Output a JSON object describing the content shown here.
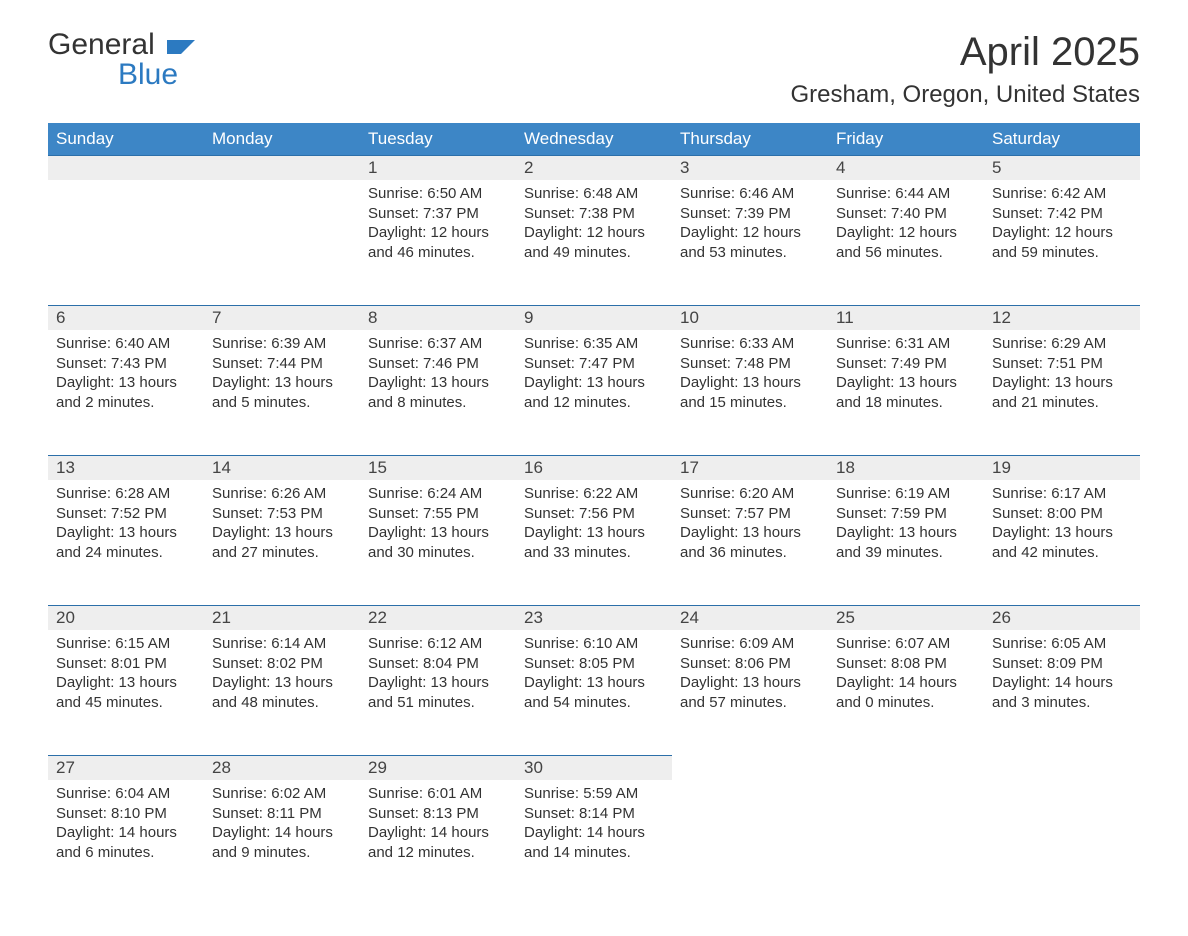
{
  "logo": {
    "word1": "General",
    "word2": "Blue"
  },
  "header": {
    "month_title": "April 2025",
    "location": "Gresham, Oregon, United States"
  },
  "colors": {
    "header_bg": "#3d86c6",
    "header_text": "#ffffff",
    "row_divider": "#2c6fa9",
    "daynum_bg": "#eeeeee",
    "body_text": "#333333",
    "logo_accent": "#2c7ac1",
    "page_bg": "#ffffff"
  },
  "weekdays": [
    "Sunday",
    "Monday",
    "Tuesday",
    "Wednesday",
    "Thursday",
    "Friday",
    "Saturday"
  ],
  "calendar": {
    "type": "table",
    "columns": 7,
    "rows": 5,
    "start_weekday_index": 2,
    "days_in_month": 30,
    "day_font_size": 17,
    "body_font_size": 15
  },
  "days": {
    "1": {
      "sunrise": "6:50 AM",
      "sunset": "7:37 PM",
      "daylight": "12 hours and 46 minutes."
    },
    "2": {
      "sunrise": "6:48 AM",
      "sunset": "7:38 PM",
      "daylight": "12 hours and 49 minutes."
    },
    "3": {
      "sunrise": "6:46 AM",
      "sunset": "7:39 PM",
      "daylight": "12 hours and 53 minutes."
    },
    "4": {
      "sunrise": "6:44 AM",
      "sunset": "7:40 PM",
      "daylight": "12 hours and 56 minutes."
    },
    "5": {
      "sunrise": "6:42 AM",
      "sunset": "7:42 PM",
      "daylight": "12 hours and 59 minutes."
    },
    "6": {
      "sunrise": "6:40 AM",
      "sunset": "7:43 PM",
      "daylight": "13 hours and 2 minutes."
    },
    "7": {
      "sunrise": "6:39 AM",
      "sunset": "7:44 PM",
      "daylight": "13 hours and 5 minutes."
    },
    "8": {
      "sunrise": "6:37 AM",
      "sunset": "7:46 PM",
      "daylight": "13 hours and 8 minutes."
    },
    "9": {
      "sunrise": "6:35 AM",
      "sunset": "7:47 PM",
      "daylight": "13 hours and 12 minutes."
    },
    "10": {
      "sunrise": "6:33 AM",
      "sunset": "7:48 PM",
      "daylight": "13 hours and 15 minutes."
    },
    "11": {
      "sunrise": "6:31 AM",
      "sunset": "7:49 PM",
      "daylight": "13 hours and 18 minutes."
    },
    "12": {
      "sunrise": "6:29 AM",
      "sunset": "7:51 PM",
      "daylight": "13 hours and 21 minutes."
    },
    "13": {
      "sunrise": "6:28 AM",
      "sunset": "7:52 PM",
      "daylight": "13 hours and 24 minutes."
    },
    "14": {
      "sunrise": "6:26 AM",
      "sunset": "7:53 PM",
      "daylight": "13 hours and 27 minutes."
    },
    "15": {
      "sunrise": "6:24 AM",
      "sunset": "7:55 PM",
      "daylight": "13 hours and 30 minutes."
    },
    "16": {
      "sunrise": "6:22 AM",
      "sunset": "7:56 PM",
      "daylight": "13 hours and 33 minutes."
    },
    "17": {
      "sunrise": "6:20 AM",
      "sunset": "7:57 PM",
      "daylight": "13 hours and 36 minutes."
    },
    "18": {
      "sunrise": "6:19 AM",
      "sunset": "7:59 PM",
      "daylight": "13 hours and 39 minutes."
    },
    "19": {
      "sunrise": "6:17 AM",
      "sunset": "8:00 PM",
      "daylight": "13 hours and 42 minutes."
    },
    "20": {
      "sunrise": "6:15 AM",
      "sunset": "8:01 PM",
      "daylight": "13 hours and 45 minutes."
    },
    "21": {
      "sunrise": "6:14 AM",
      "sunset": "8:02 PM",
      "daylight": "13 hours and 48 minutes."
    },
    "22": {
      "sunrise": "6:12 AM",
      "sunset": "8:04 PM",
      "daylight": "13 hours and 51 minutes."
    },
    "23": {
      "sunrise": "6:10 AM",
      "sunset": "8:05 PM",
      "daylight": "13 hours and 54 minutes."
    },
    "24": {
      "sunrise": "6:09 AM",
      "sunset": "8:06 PM",
      "daylight": "13 hours and 57 minutes."
    },
    "25": {
      "sunrise": "6:07 AM",
      "sunset": "8:08 PM",
      "daylight": "14 hours and 0 minutes."
    },
    "26": {
      "sunrise": "6:05 AM",
      "sunset": "8:09 PM",
      "daylight": "14 hours and 3 minutes."
    },
    "27": {
      "sunrise": "6:04 AM",
      "sunset": "8:10 PM",
      "daylight": "14 hours and 6 minutes."
    },
    "28": {
      "sunrise": "6:02 AM",
      "sunset": "8:11 PM",
      "daylight": "14 hours and 9 minutes."
    },
    "29": {
      "sunrise": "6:01 AM",
      "sunset": "8:13 PM",
      "daylight": "14 hours and 12 minutes."
    },
    "30": {
      "sunrise": "5:59 AM",
      "sunset": "8:14 PM",
      "daylight": "14 hours and 14 minutes."
    }
  },
  "labels": {
    "sunrise_prefix": "Sunrise: ",
    "sunset_prefix": "Sunset: ",
    "daylight_prefix": "Daylight: "
  }
}
